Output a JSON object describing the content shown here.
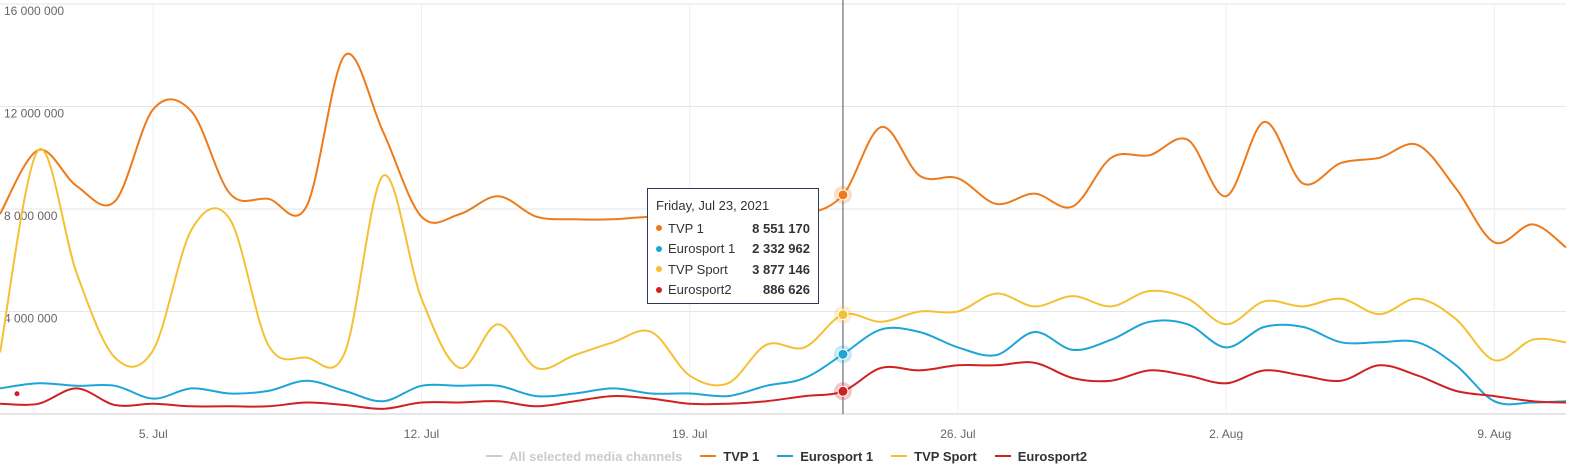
{
  "chart_data": {
    "type": "line",
    "title": "",
    "xlabel": "",
    "ylabel": "",
    "ylim": [
      0,
      16000000
    ],
    "yticks": [
      "4 000 000",
      "8 000 000",
      "12 000 000",
      "16 000 000"
    ],
    "ytick_values": [
      4000000,
      8000000,
      12000000,
      16000000
    ],
    "xticks": [
      "5. Jul",
      "12. Jul",
      "19. Jul",
      "26. Jul",
      "2. Aug",
      "9. Aug"
    ],
    "xtick_days": [
      4,
      11,
      18,
      25,
      32,
      39
    ],
    "xlim_days": [
      0,
      40.87
    ],
    "x_start_date": "2021-07-01",
    "grid": true,
    "legend_position": "bottom",
    "legend": [
      {
        "label": "All selected media channels",
        "color": "#cccccc",
        "inactive": true
      },
      {
        "label": "TVP 1",
        "color": "#ef7a1a"
      },
      {
        "label": "Eurosport 1",
        "color": "#1ea5d8"
      },
      {
        "label": "TVP Sport",
        "color": "#f5c033"
      },
      {
        "label": "Eurosport2",
        "color": "#cf2121"
      }
    ],
    "series": [
      {
        "name": "TVP 1",
        "color": "#ef7a1a",
        "x": [
          0,
          1,
          2,
          3,
          4,
          5,
          6,
          7,
          8,
          9,
          10,
          11,
          12,
          13,
          14,
          15,
          16,
          17,
          18,
          19,
          20,
          21,
          22,
          23,
          24,
          25,
          26,
          27,
          28,
          29,
          30,
          31,
          32,
          33,
          34,
          35,
          36,
          37,
          38,
          39,
          40,
          40.87
        ],
        "y": [
          7800000,
          10300000,
          8900000,
          8300000,
          11900000,
          11800000,
          8600000,
          8400000,
          8100000,
          14000000,
          11000000,
          7700000,
          7800000,
          8500000,
          7700000,
          7600000,
          7600000,
          7700000,
          7700000,
          7600000,
          7800000,
          7800000,
          8551170,
          11200000,
          9300000,
          9200000,
          8200000,
          8600000,
          8100000,
          10000000,
          10100000,
          10700000,
          8500000,
          11400000,
          9000000,
          9800000,
          10000000,
          10500000,
          8800000,
          6700000,
          7400000,
          6500000
        ]
      },
      {
        "name": "Eurosport 1",
        "color": "#1ea5d8",
        "x": [
          0,
          1,
          2,
          3,
          4,
          5,
          6,
          7,
          8,
          9,
          10,
          11,
          12,
          13,
          14,
          15,
          16,
          17,
          18,
          19,
          20,
          21,
          22,
          23,
          24,
          25,
          26,
          27,
          28,
          29,
          30,
          31,
          32,
          33,
          34,
          35,
          36,
          37,
          38,
          39,
          40,
          40.87
        ],
        "y": [
          1000000,
          1200000,
          1100000,
          1100000,
          600000,
          1000000,
          800000,
          900000,
          1300000,
          900000,
          500000,
          1100000,
          1100000,
          1100000,
          700000,
          800000,
          1000000,
          800000,
          800000,
          700000,
          1100000,
          1400000,
          2332962,
          3300000,
          3200000,
          2600000,
          2300000,
          3200000,
          2500000,
          2900000,
          3600000,
          3500000,
          2600000,
          3400000,
          3400000,
          2800000,
          2800000,
          2800000,
          1900000,
          500000,
          450000,
          500000
        ]
      },
      {
        "name": "TVP Sport",
        "color": "#f5c033",
        "x": [
          0,
          1,
          2,
          3,
          4,
          5,
          6,
          7,
          8,
          9,
          10,
          11,
          12,
          13,
          14,
          15,
          16,
          17,
          18,
          19,
          20,
          21,
          22,
          23,
          24,
          25,
          26,
          27,
          28,
          29,
          30,
          31,
          32,
          33,
          34,
          35,
          36,
          37,
          38,
          39,
          40,
          40.87
        ],
        "y": [
          2400000,
          10300000,
          5500000,
          2200000,
          2500000,
          7200000,
          7600000,
          2700000,
          2200000,
          2400000,
          9300000,
          4500000,
          1800000,
          3500000,
          1800000,
          2300000,
          2800000,
          3200000,
          1500000,
          1200000,
          2700000,
          2600000,
          3877146,
          3600000,
          4000000,
          4000000,
          4700000,
          4200000,
          4600000,
          4200000,
          4800000,
          4500000,
          3500000,
          4400000,
          4200000,
          4500000,
          3900000,
          4500000,
          3700000,
          2100000,
          2900000,
          2800000
        ]
      },
      {
        "name": "Eurosport2",
        "color": "#cf2121",
        "x": [
          0,
          1,
          2,
          3,
          4,
          5,
          6,
          7,
          8,
          9,
          10,
          11,
          12,
          13,
          14,
          15,
          16,
          17,
          18,
          19,
          20,
          21,
          22,
          23,
          24,
          25,
          26,
          27,
          28,
          29,
          30,
          31,
          32,
          33,
          34,
          35,
          36,
          37,
          38,
          39,
          40,
          40.87
        ],
        "y": [
          400000,
          400000,
          1000000,
          350000,
          400000,
          300000,
          300000,
          300000,
          450000,
          350000,
          200000,
          450000,
          450000,
          500000,
          300000,
          500000,
          700000,
          600000,
          400000,
          400000,
          500000,
          700000,
          886626,
          1800000,
          1700000,
          1900000,
          1900000,
          2000000,
          1400000,
          1300000,
          1700000,
          1500000,
          1200000,
          1700000,
          1500000,
          1300000,
          1900000,
          1500000,
          900000,
          700000,
          500000,
          450000
        ]
      }
    ]
  },
  "tooltip": {
    "date": "Friday, Jul 23, 2021",
    "rows": [
      {
        "name": "TVP 1",
        "value": "8 551 170",
        "color": "#ef7a1a"
      },
      {
        "name": "Eurosport 1",
        "value": "2 332 962",
        "color": "#1ea5d8"
      },
      {
        "name": "TVP Sport",
        "value": "3 877 146",
        "color": "#f5c033"
      },
      {
        "name": "Eurosport2",
        "value": "886 626",
        "color": "#cf2121"
      }
    ]
  },
  "crosshair_day": 22
}
